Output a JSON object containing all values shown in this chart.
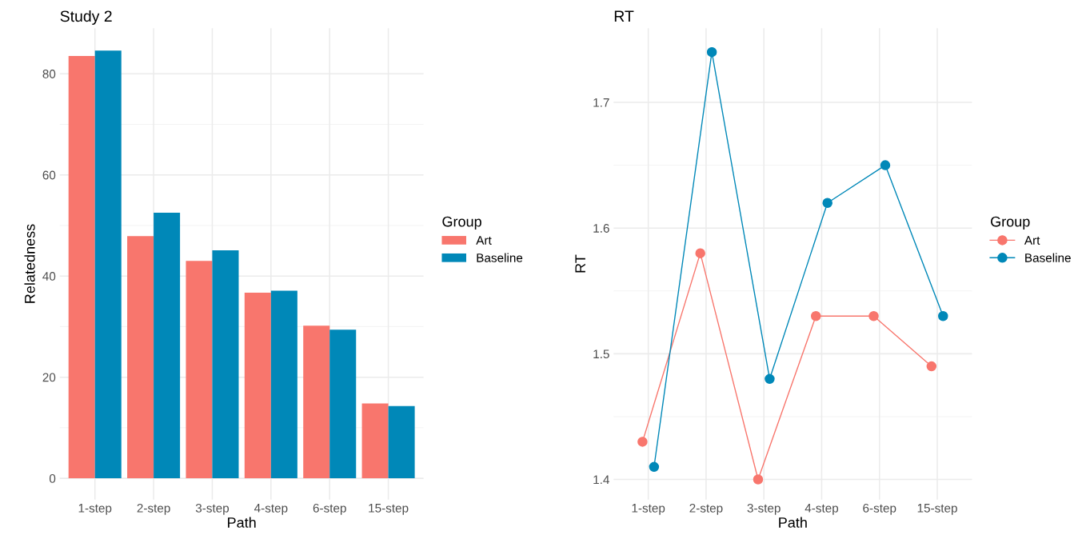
{
  "chart_data": [
    {
      "type": "bar",
      "title": "Study 2",
      "xlabel": "Path",
      "ylabel": "Relatedness",
      "legend_title": "Group",
      "legend": "right",
      "grid": true,
      "categories": [
        "1-step",
        "2-step",
        "3-step",
        "4-step",
        "6-step",
        "15-step"
      ],
      "ylim": [
        -4.2,
        89
      ],
      "yticks": [
        0,
        20,
        40,
        60,
        80
      ],
      "series": [
        {
          "name": "Art",
          "color": "#f8766d",
          "values": [
            83.5,
            47.9,
            43.0,
            36.7,
            30.2,
            14.8
          ]
        },
        {
          "name": "Baseline",
          "color": "#0088b8",
          "values": [
            84.6,
            52.5,
            45.1,
            37.1,
            29.4,
            14.3
          ]
        }
      ]
    },
    {
      "type": "line",
      "title": "RT",
      "xlabel": "Path",
      "ylabel": "RT",
      "legend_title": "Group",
      "legend": "right",
      "grid": true,
      "marker": "circle",
      "categories": [
        "1-step",
        "2-step",
        "3-step",
        "4-step",
        "6-step",
        "15-step"
      ],
      "ylim": [
        1.384,
        1.759
      ],
      "yticks": [
        1.4,
        1.5,
        1.6,
        1.7
      ],
      "series": [
        {
          "name": "Art",
          "color": "#f8766d",
          "values": [
            1.43,
            1.58,
            1.4,
            1.53,
            1.53,
            1.49
          ]
        },
        {
          "name": "Baseline",
          "color": "#0088b8",
          "values": [
            1.41,
            1.74,
            1.48,
            1.62,
            1.65,
            1.53
          ]
        }
      ]
    }
  ]
}
